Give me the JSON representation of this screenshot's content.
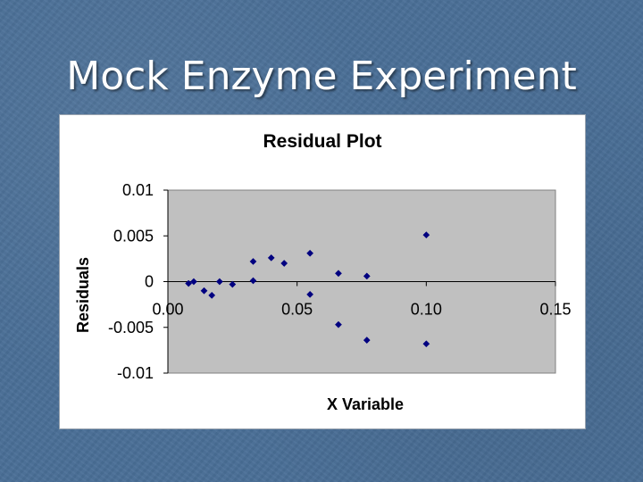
{
  "slide": {
    "title": "Mock Enzyme Experiment"
  },
  "chart_data": {
    "type": "scatter",
    "title": "Residual Plot",
    "xlabel": "X Variable",
    "ylabel": "Residuals",
    "xlim": [
      0,
      0.15
    ],
    "ylim": [
      -0.01,
      0.01
    ],
    "x_ticks": [
      0,
      0.05,
      0.1,
      0.15
    ],
    "x_tick_labels": [
      "0.00",
      "0.05",
      "0.10",
      "0.15"
    ],
    "y_ticks": [
      0.01,
      0.005,
      0,
      -0.005,
      -0.01
    ],
    "y_tick_labels": [
      "0.01",
      "0.005",
      "0",
      "-0.005",
      "-0.01"
    ],
    "grid": false,
    "legend": false,
    "plot_area_color": "#c0c0c0",
    "marker_color": "#000080",
    "points": [
      {
        "x": 0.008,
        "y": -0.0002
      },
      {
        "x": 0.01,
        "y": 0.0
      },
      {
        "x": 0.014,
        "y": -0.001
      },
      {
        "x": 0.017,
        "y": -0.0015
      },
      {
        "x": 0.02,
        "y": 0.0
      },
      {
        "x": 0.025,
        "y": -0.0003
      },
      {
        "x": 0.033,
        "y": 0.0022
      },
      {
        "x": 0.033,
        "y": 0.0001
      },
      {
        "x": 0.04,
        "y": 0.0026
      },
      {
        "x": 0.045,
        "y": 0.002
      },
      {
        "x": 0.055,
        "y": 0.0031
      },
      {
        "x": 0.055,
        "y": -0.0014
      },
      {
        "x": 0.066,
        "y": 0.0009
      },
      {
        "x": 0.066,
        "y": -0.0047
      },
      {
        "x": 0.077,
        "y": 0.0006
      },
      {
        "x": 0.077,
        "y": -0.0064
      },
      {
        "x": 0.1,
        "y": 0.0051
      },
      {
        "x": 0.1,
        "y": -0.0068
      }
    ]
  }
}
